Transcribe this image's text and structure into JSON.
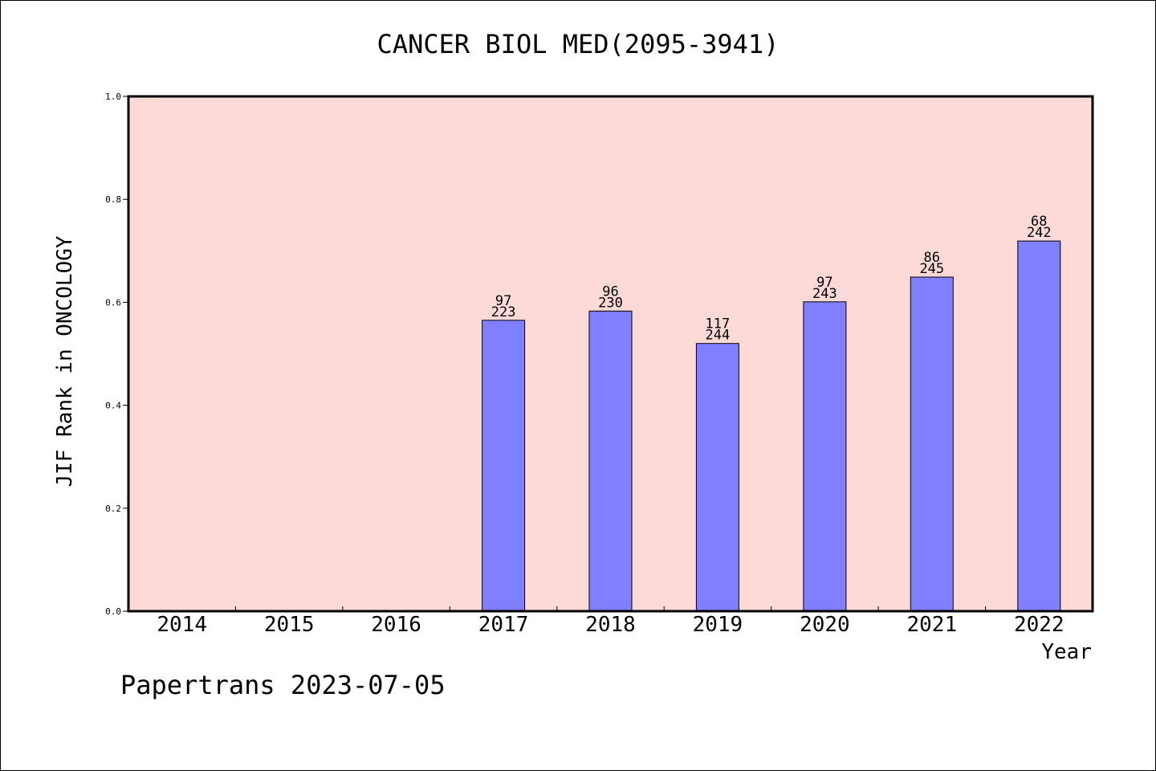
{
  "chart_data": {
    "type": "bar",
    "title": "CANCER BIOL MED(2095-3941)",
    "xlabel": "Year",
    "ylabel": "JIF Rank in ONCOLOGY",
    "ylim": [
      0,
      1.0
    ],
    "yticks": [
      "0.0",
      "0.2",
      "0.4",
      "0.6",
      "0.8",
      "1.0"
    ],
    "categories": [
      "2014",
      "2015",
      "2016",
      "2017",
      "2018",
      "2019",
      "2020",
      "2021",
      "2022"
    ],
    "values": [
      null,
      null,
      null,
      0.565,
      0.583,
      0.52,
      0.601,
      0.649,
      0.719
    ],
    "rank_labels": [
      "",
      "",
      "",
      "97",
      "96",
      "117",
      "97",
      "86",
      "68"
    ],
    "total_labels": [
      "",
      "",
      "",
      "223",
      "230",
      "244",
      "243",
      "245",
      "242"
    ],
    "grid": false,
    "colors": {
      "plot_background": "#fddad8",
      "bar_fill": "#8080ff",
      "bar_stroke": "#000000"
    }
  },
  "footer": {
    "credit": "Papertrans 2023-07-05"
  }
}
